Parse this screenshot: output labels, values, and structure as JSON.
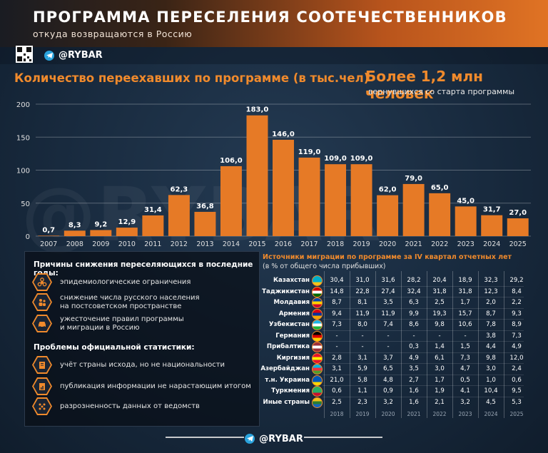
{
  "header": {
    "title": "ПРОГРАММА ПЕРЕСЕЛЕНИЯ СООТЕЧЕСТВЕННИКОВ",
    "subtitle": "откуда возвращаются в Россию"
  },
  "brand": {
    "handle": "@RYBAR",
    "watermark": "@RYBAR"
  },
  "chart_title": "Количество переехавших по программе (в тыс.чел)",
  "highlight": {
    "value": "Более 1,2 млн человек",
    "caption": "вернувшихся со старта программы"
  },
  "chart_data": {
    "type": "bar",
    "title": "Количество переехавших по программе (в тыс.чел)",
    "categories": [
      "2007",
      "2008",
      "2009",
      "2010",
      "2011",
      "2012",
      "2013",
      "2014",
      "2015",
      "2016",
      "2017",
      "2018",
      "2019",
      "2020",
      "2021",
      "2022",
      "2023",
      "2024",
      "2025"
    ],
    "values": [
      0.7,
      8.3,
      9.2,
      12.9,
      31.4,
      62.3,
      36.8,
      106.0,
      183.0,
      146.0,
      119.0,
      109.0,
      109.0,
      62.0,
      79.0,
      65.0,
      45.0,
      31.7,
      27.0
    ],
    "value_labels": [
      "0,7",
      "8,3",
      "9,2",
      "12,9",
      "31,4",
      "62,3",
      "36,8",
      "106,0",
      "183,0",
      "146,0",
      "119,0",
      "109,0",
      "109,0",
      "62,0",
      "79,0",
      "65,0",
      "45,0",
      "31,7",
      "27,0"
    ],
    "yticks": [
      0,
      50,
      100,
      150,
      200
    ],
    "ylim": [
      0,
      200
    ],
    "grid": true,
    "color": "#e67a26",
    "highlight_color": "#f09036"
  },
  "reasons": {
    "heading": "Причины снижения переселяющихся в последние годы:",
    "items": [
      {
        "line1": "эпидемиологические ограничения",
        "line2": "",
        "icon": "biohazard-icon"
      },
      {
        "line1": "снижение числа русского населения",
        "line2": "на постсоветском пространстве",
        "icon": "people-icon"
      },
      {
        "line1": "ужесточение правил программы",
        "line2": "и миграции в Россию",
        "icon": "car-icon"
      }
    ]
  },
  "problems": {
    "heading": "Проблемы официальной статистики:",
    "items": [
      {
        "text": "учёт страны исхода, но не национальности",
        "icon": "document-icon"
      },
      {
        "text": "публикация информации не нарастающим итогом",
        "icon": "report-icon"
      },
      {
        "text": "разрозненность данных от ведомств",
        "icon": "scatter-icon"
      }
    ]
  },
  "migration_table": {
    "title": "Источники миграции по программе за IV квартал отчетных лет",
    "subtitle": "(в % от общего числа прибывших)",
    "years": [
      "2018",
      "2019",
      "2020",
      "2021",
      "2022",
      "2023",
      "2024",
      "2025"
    ],
    "rows": [
      {
        "country": "Казахстан",
        "values": [
          "30,4",
          "31,0",
          "31,6",
          "28,2",
          "20,4",
          "18,9",
          "32,3",
          "29,2"
        ],
        "flag": [
          "#00afca",
          "#00afca",
          "#f5c518"
        ]
      },
      {
        "country": "Таджикистан",
        "values": [
          "14,8",
          "22,8",
          "27,4",
          "32,4",
          "31,8",
          "31,8",
          "12,3",
          "8,4"
        ],
        "flag": [
          "#cc0000",
          "#ffffff",
          "#006600"
        ]
      },
      {
        "country": "Молдавия",
        "values": [
          "8,7",
          "8,1",
          "3,5",
          "6,3",
          "2,5",
          "1,7",
          "2,0",
          "2,2"
        ],
        "flag": [
          "#0046ae",
          "#ffd200",
          "#cc092f"
        ]
      },
      {
        "country": "Армения",
        "values": [
          "9,4",
          "11,9",
          "11,9",
          "9,9",
          "19,3",
          "15,7",
          "8,7",
          "9,3"
        ],
        "flag": [
          "#d90012",
          "#0033a0",
          "#f2a800"
        ]
      },
      {
        "country": "Узбекистан",
        "values": [
          "7,3",
          "8,0",
          "7,4",
          "8,6",
          "9,8",
          "10,6",
          "7,8",
          "8,9"
        ],
        "flag": [
          "#1eb5e6",
          "#ffffff",
          "#1eb53a"
        ]
      },
      {
        "country": "Германия",
        "values": [
          "-",
          "-",
          "-",
          "-",
          "-",
          "-",
          "3,8",
          "7,3"
        ],
        "flag": [
          "#000000",
          "#dd0000",
          "#ffce00"
        ]
      },
      {
        "country": "Прибалтика",
        "values": [
          "-",
          "-",
          "-",
          "0,3",
          "1,4",
          "1,5",
          "4,4",
          "4,9"
        ],
        "flag": [
          "#9e3039",
          "#ffffff",
          "#9e3039"
        ]
      },
      {
        "country": "Киргизия",
        "values": [
          "2,8",
          "3,1",
          "3,7",
          "4,9",
          "6,1",
          "7,3",
          "9,8",
          "12,0"
        ],
        "flag": [
          "#e8112d",
          "#ffef00",
          "#e8112d"
        ]
      },
      {
        "country": "Азербайджан",
        "values": [
          "3,1",
          "5,9",
          "6,5",
          "3,5",
          "3,0",
          "4,7",
          "3,0",
          "2,4"
        ],
        "flag": [
          "#00b5e2",
          "#ef3340",
          "#509e2f"
        ]
      },
      {
        "country": "т.н. Украина",
        "values": [
          "21,0",
          "5,8",
          "4,8",
          "2,7",
          "1,7",
          "0,5",
          "1,0",
          "0,6"
        ],
        "flag": [
          "#0057b7",
          "#0057b7",
          "#ffd700"
        ]
      },
      {
        "country": "Туркмения",
        "values": [
          "0,6",
          "1,1",
          "0,9",
          "1,6",
          "1,9",
          "4,1",
          "10,4",
          "9,5"
        ],
        "flag": [
          "#28ae66",
          "#28ae66",
          "#c8102e"
        ]
      },
      {
        "country": "Иные страны",
        "values": [
          "2,5",
          "2,3",
          "3,2",
          "1,6",
          "2,1",
          "3,2",
          "4,5",
          "5,3"
        ],
        "flag": [
          "#f0c419",
          "#2e7d32",
          "#1565c0"
        ]
      }
    ]
  }
}
